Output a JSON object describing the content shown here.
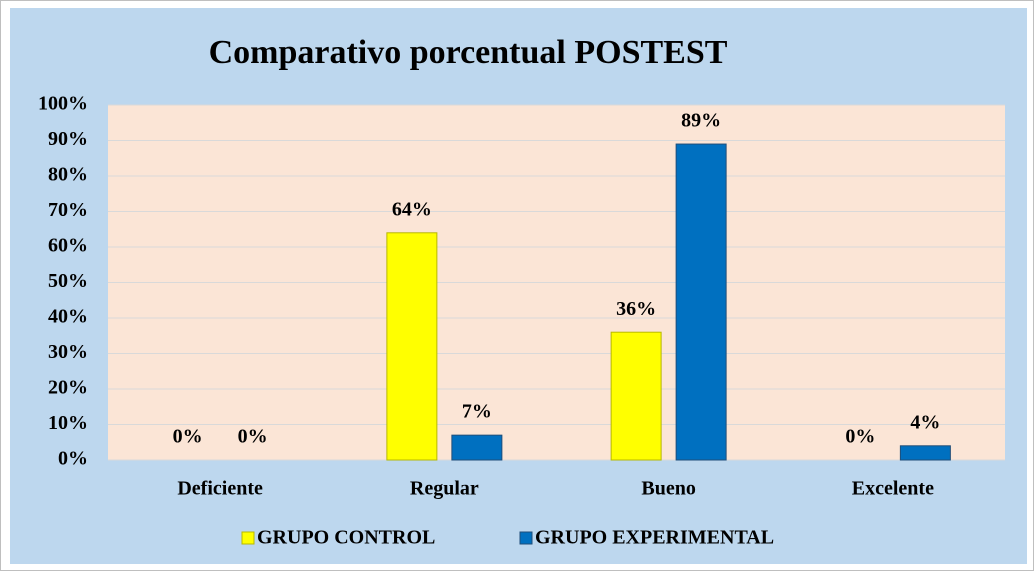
{
  "chart_data": {
    "type": "bar",
    "title": "Comparativo porcentual POSTEST",
    "categories": [
      "Deficiente",
      "Regular",
      "Bueno",
      "Excelente"
    ],
    "series": [
      {
        "name": "GRUPO CONTROL",
        "color": "#ffff00",
        "values": [
          0,
          64,
          36,
          0
        ],
        "value_labels": [
          "0%",
          "64%",
          "36%",
          "0%"
        ]
      },
      {
        "name": "GRUPO EXPERIMENTAL",
        "color": "#0070c0",
        "values": [
          0,
          7,
          89,
          4
        ],
        "value_labels": [
          "0%",
          "7%",
          "89%",
          "4%"
        ]
      }
    ],
    "ylim": [
      0,
      100
    ],
    "yticks": [
      {
        "value": 0,
        "label": "0%"
      },
      {
        "value": 10,
        "label": "10%"
      },
      {
        "value": 20,
        "label": "20%"
      },
      {
        "value": 30,
        "label": "30%"
      },
      {
        "value": 40,
        "label": "40%"
      },
      {
        "value": 50,
        "label": "50%"
      },
      {
        "value": 60,
        "label": "60%"
      },
      {
        "value": 70,
        "label": "70%"
      },
      {
        "value": 80,
        "label": "80%"
      },
      {
        "value": 90,
        "label": "90%"
      },
      {
        "value": 100,
        "label": "100%"
      }
    ],
    "grid": true,
    "legend": "bottom"
  }
}
